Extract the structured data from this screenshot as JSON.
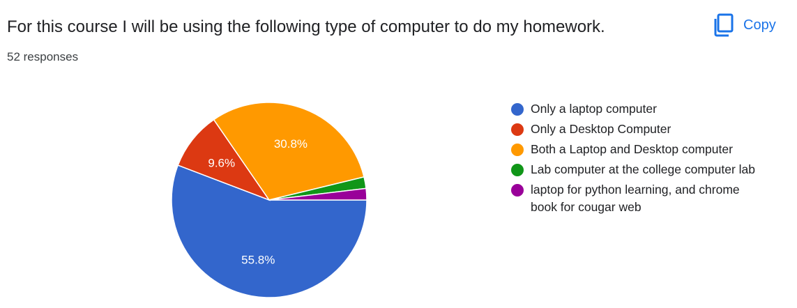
{
  "question": {
    "title": "For this course I will be using the following type of computer to do my homework.",
    "responses": "52 responses"
  },
  "copy": {
    "label": "Copy",
    "icon": "copy-icon"
  },
  "colors": {
    "accent": "#1a73e8"
  },
  "chart_data": {
    "type": "pie",
    "total_responses": 52,
    "slices": [
      {
        "label": "Only a laptop computer",
        "value": 55.8,
        "color": "#3366cc",
        "data_label": "55.8%"
      },
      {
        "label": "Only a Desktop Computer",
        "value": 9.6,
        "color": "#dc3912",
        "data_label": "9.6%"
      },
      {
        "label": "Both a Laptop and Desktop computer",
        "value": 30.8,
        "color": "#ff9900",
        "data_label": "30.8%"
      },
      {
        "label": "Lab computer at the college computer lab",
        "value": 1.9,
        "color": "#109618",
        "data_label": ""
      },
      {
        "label": "laptop for python learning, and chrome book for cougar web",
        "value": 1.9,
        "color": "#990099",
        "data_label": ""
      }
    ],
    "legend_position": "right"
  }
}
